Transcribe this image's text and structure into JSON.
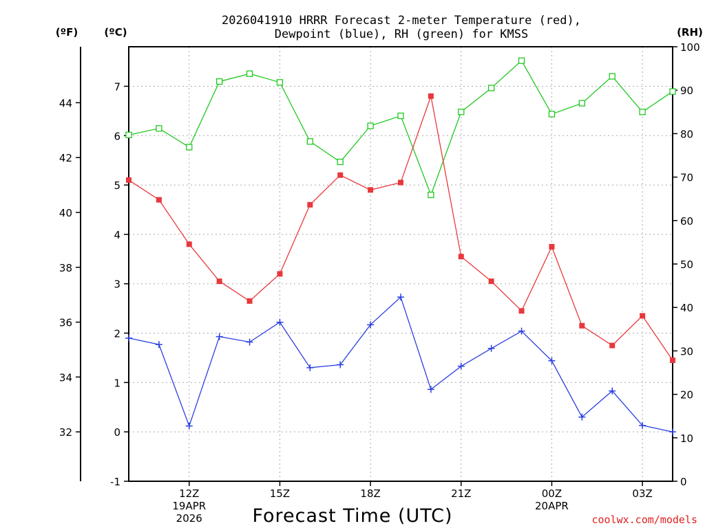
{
  "chart_data": {
    "type": "line",
    "title_lines": [
      "2026041910 HRRR Forecast 2-meter Temperature (red),",
      "Dewpoint (blue), RH (green) for KMSS"
    ],
    "axis_units": {
      "fahrenheit": "(ºF)",
      "celsius": "(ºC)",
      "rh": "(RH)"
    },
    "xlabel": "Forecast Time (UTC)",
    "credit": "coolwx.com/models",
    "x_hours": [
      10,
      11,
      12,
      13,
      14,
      15,
      16,
      17,
      18,
      19,
      20,
      21,
      22,
      23,
      24,
      25,
      26,
      27,
      28
    ],
    "x_range": [
      10,
      28
    ],
    "x_ticks": [
      {
        "hour": 12,
        "lines": [
          "12Z",
          "19APR",
          "2026"
        ]
      },
      {
        "hour": 15,
        "lines": [
          "15Z"
        ]
      },
      {
        "hour": 18,
        "lines": [
          "18Z"
        ]
      },
      {
        "hour": 21,
        "lines": [
          "21Z"
        ]
      },
      {
        "hour": 24,
        "lines": [
          "00Z",
          "20APR"
        ]
      },
      {
        "hour": 27,
        "lines": [
          "03Z"
        ]
      }
    ],
    "celsius_axis": {
      "range": [
        -1,
        7.8
      ],
      "ticks": [
        -1,
        0,
        1,
        2,
        3,
        4,
        5,
        6,
        7
      ]
    },
    "fahrenheit_axis": {
      "ticks": [
        32,
        34,
        36,
        38,
        40,
        42,
        44
      ]
    },
    "rh_axis": {
      "range": [
        0,
        100
      ],
      "ticks": [
        0,
        10,
        20,
        30,
        40,
        50,
        60,
        70,
        80,
        90,
        100
      ]
    },
    "series": [
      {
        "name": "2-meter Temperature",
        "unit": "C",
        "color": "#e8383d",
        "marker": "filled-square",
        "values": [
          5.1,
          4.7,
          3.8,
          3.05,
          2.65,
          3.2,
          4.6,
          5.2,
          4.9,
          5.05,
          6.8,
          3.55,
          3.05,
          2.45,
          3.75,
          2.15,
          1.75,
          2.35,
          1.45
        ]
      },
      {
        "name": "Dewpoint",
        "unit": "C",
        "color": "#2a3fe0",
        "marker": "plus",
        "values": [
          1.9,
          1.77,
          0.12,
          1.93,
          1.82,
          2.22,
          1.3,
          1.36,
          2.17,
          2.73,
          0.86,
          1.33,
          1.69,
          2.04,
          1.44,
          0.3,
          0.83,
          0.13,
          0.0
        ]
      },
      {
        "name": "RH",
        "unit": "%",
        "color": "#1fc81f",
        "marker": "open-square",
        "values": [
          79.7,
          81.2,
          76.9,
          92.0,
          93.8,
          91.8,
          78.2,
          73.5,
          81.8,
          84.1,
          65.9,
          85.0,
          90.5,
          96.8,
          84.5,
          87.0,
          93.2,
          85.0,
          89.7
        ]
      }
    ]
  }
}
